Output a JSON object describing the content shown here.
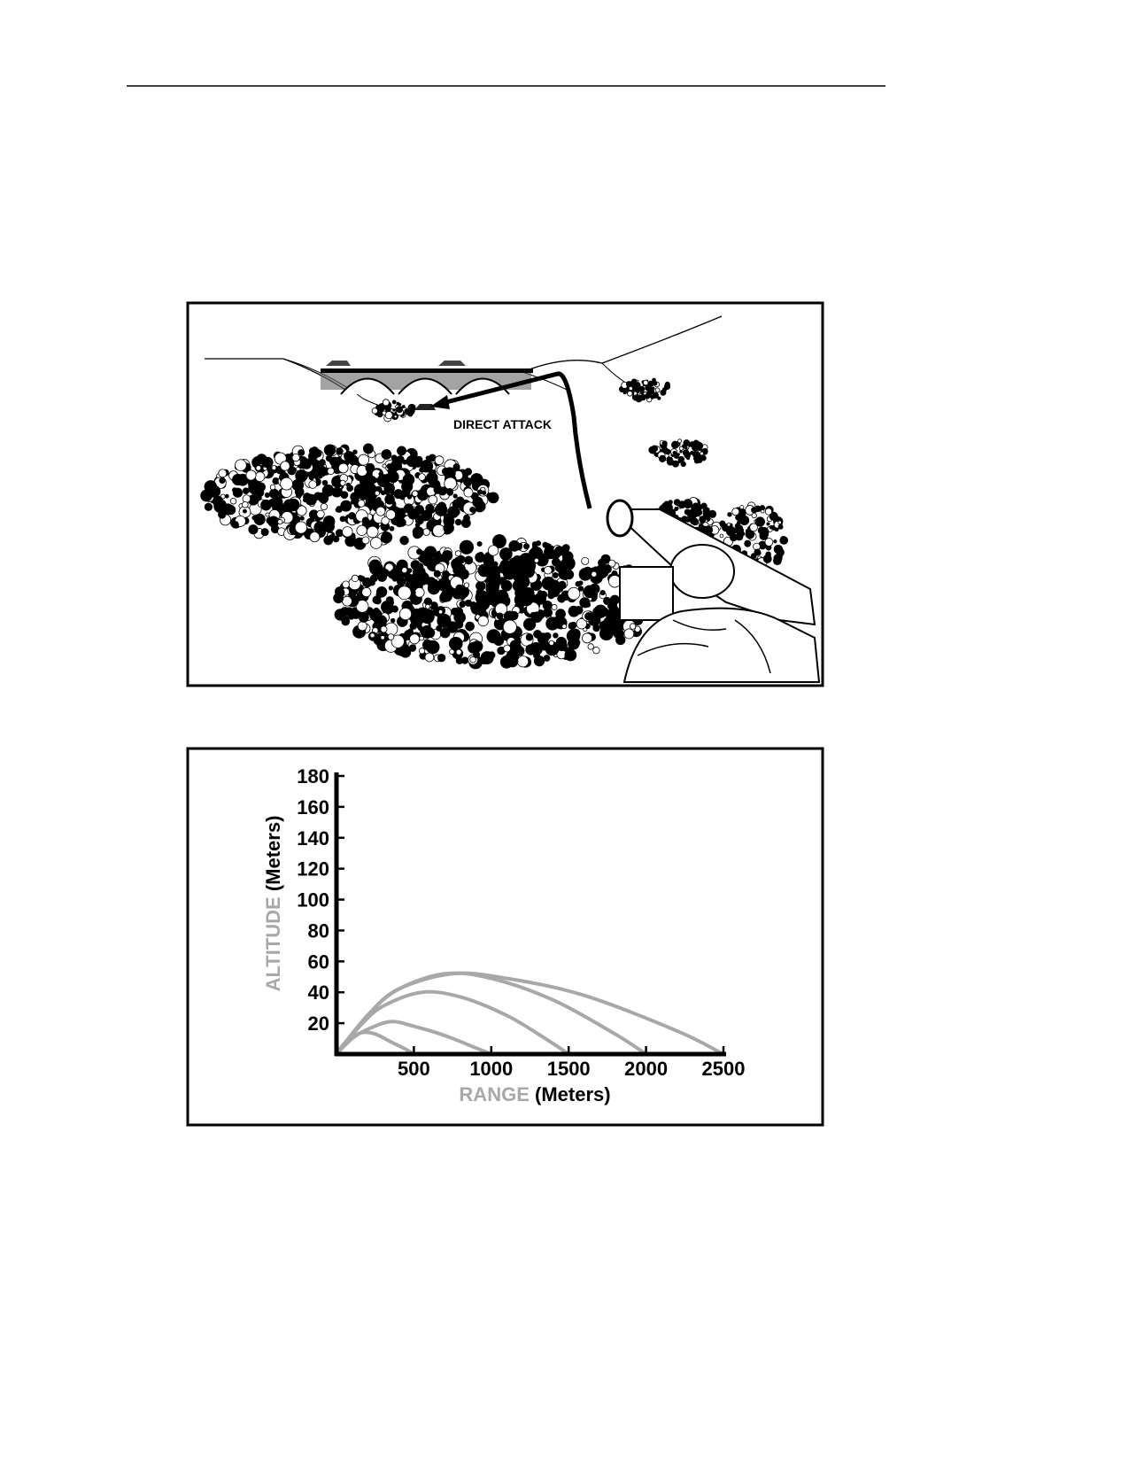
{
  "illustration": {
    "label": "DIRECT ATTACK"
  },
  "chart_data": {
    "type": "line",
    "ylabel": "ALTITUDE",
    "ylabel_unit": "(Meters)",
    "xlabel": "RANGE",
    "xlabel_unit": "(Meters)",
    "xlim": [
      0,
      2500
    ],
    "ylim": [
      0,
      180
    ],
    "xticks": [
      500,
      1000,
      1500,
      2000,
      2500
    ],
    "yticks": [
      20,
      40,
      60,
      80,
      100,
      120,
      140,
      160,
      180
    ],
    "color": "#a8a8a8",
    "series": [
      {
        "x": [
          0,
          50,
          100,
          170,
          250,
          350,
          450,
          500
        ],
        "values": [
          0,
          7,
          11,
          14,
          13,
          8,
          3,
          0
        ]
      },
      {
        "x": [
          0,
          100,
          200,
          350,
          500,
          700,
          900,
          1000
        ],
        "values": [
          0,
          10,
          16,
          21,
          18,
          12,
          4,
          0
        ]
      },
      {
        "x": [
          0,
          150,
          300,
          550,
          800,
          1100,
          1350,
          1500
        ],
        "values": [
          0,
          18,
          31,
          40,
          37,
          25,
          10,
          0
        ]
      },
      {
        "x": [
          0,
          200,
          400,
          700,
          1000,
          1400,
          1800,
          2000
        ],
        "values": [
          0,
          25,
          42,
          52,
          49,
          35,
          13,
          0
        ]
      },
      {
        "x": [
          0,
          200,
          400,
          750,
          1100,
          1600,
          2200,
          2500
        ],
        "values": [
          0,
          25,
          42,
          52,
          49,
          38,
          15,
          0
        ]
      }
    ]
  }
}
